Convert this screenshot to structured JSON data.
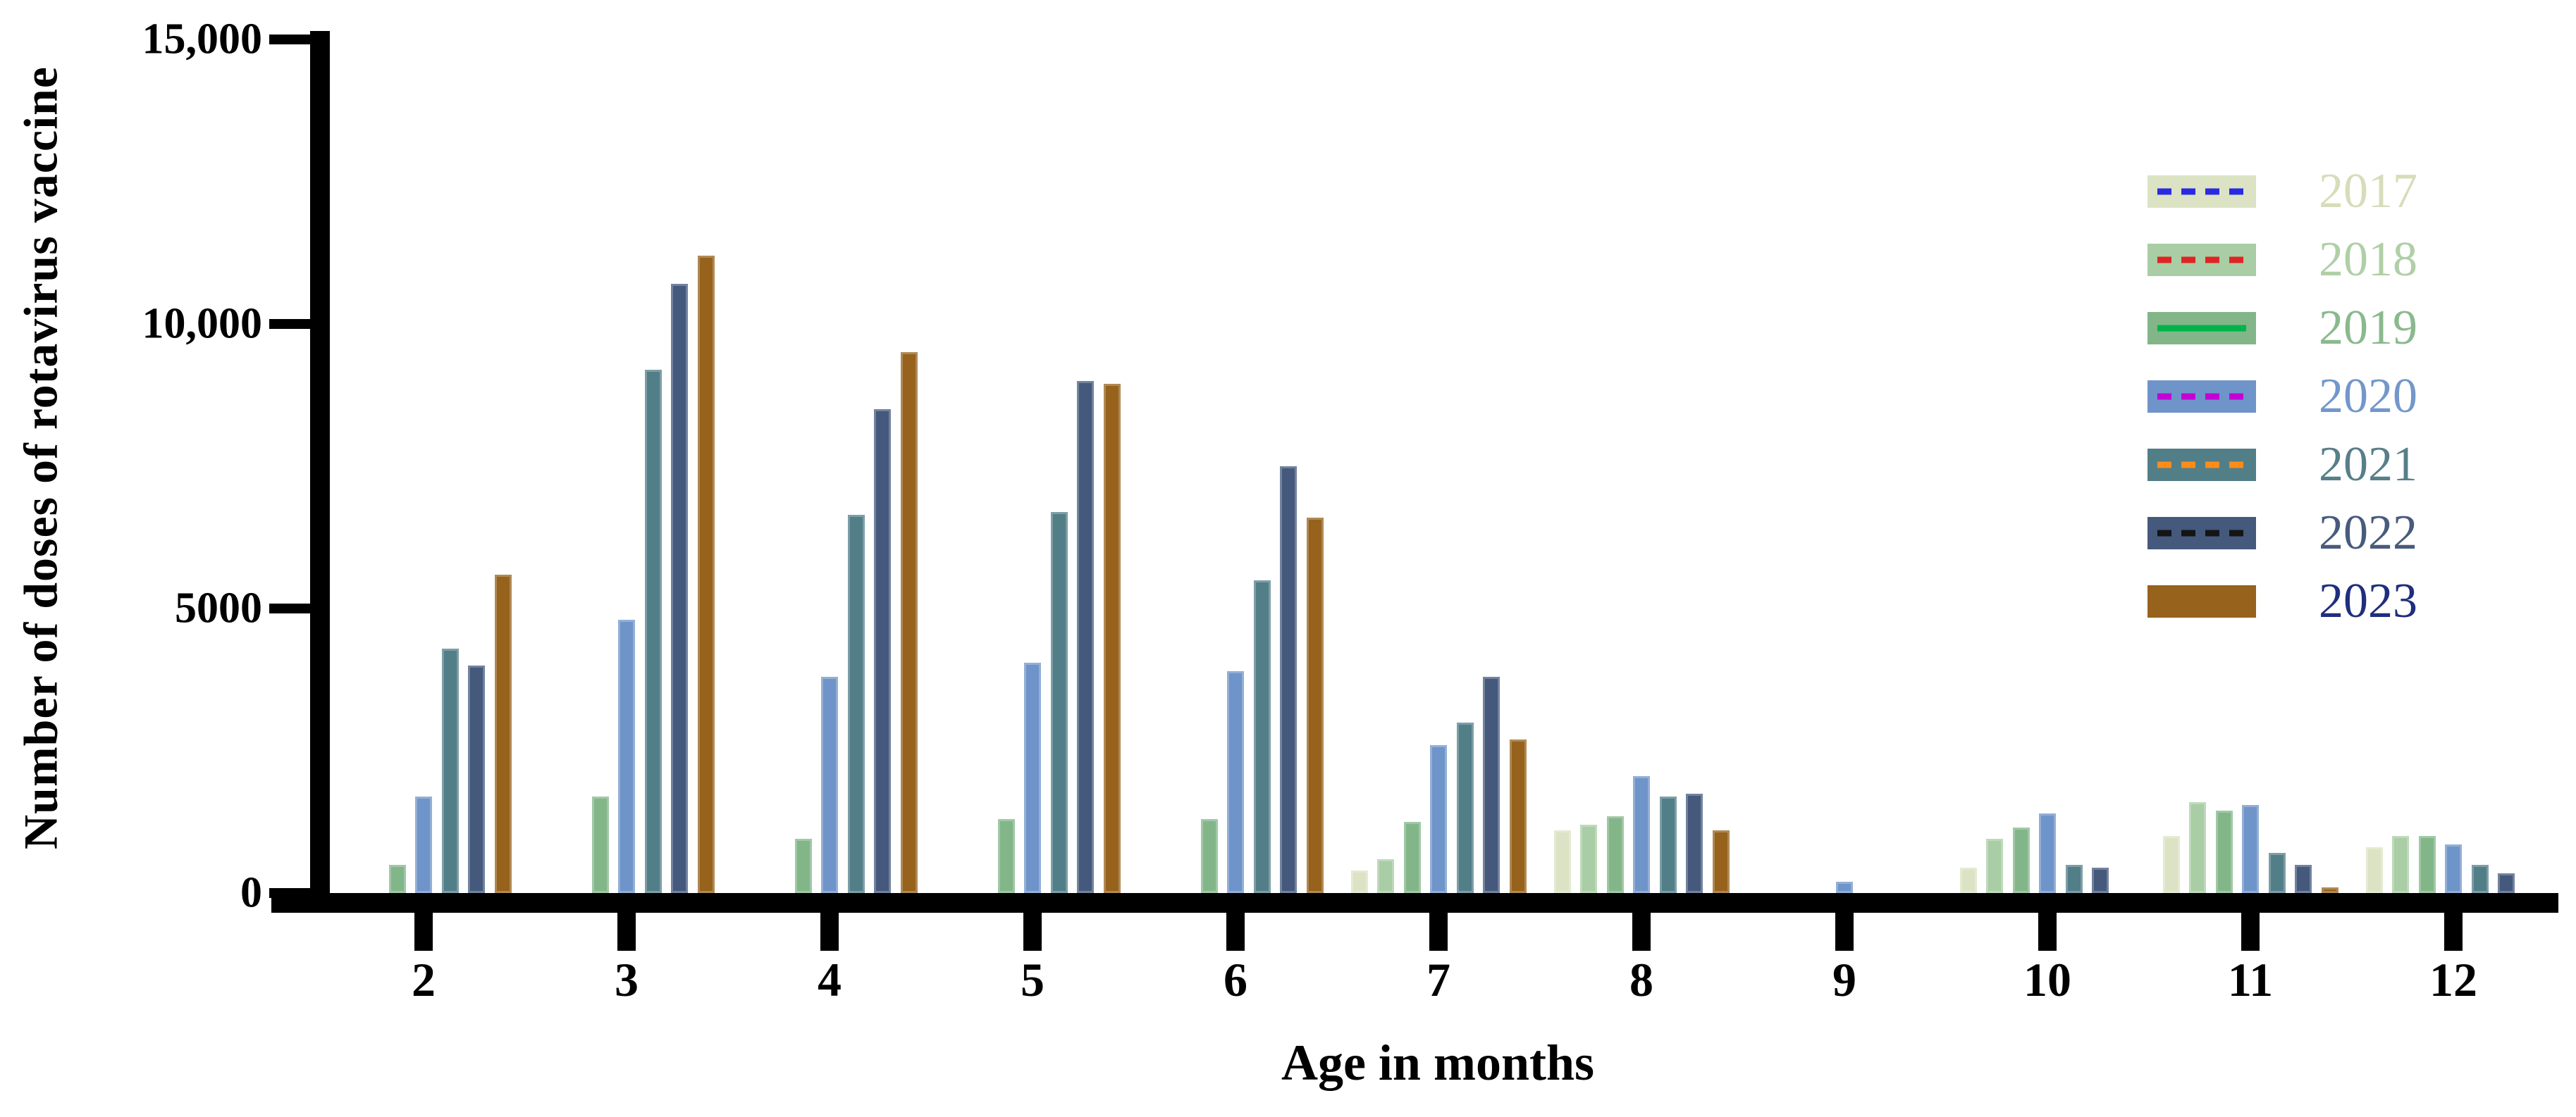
{
  "chart_data": {
    "type": "bar",
    "title": "",
    "xlabel": "Age in months",
    "ylabel": "Number of doses of rotavirus vaccine",
    "categories": [
      "2",
      "3",
      "4",
      "5",
      "6",
      "7",
      "8",
      "9",
      "10",
      "11",
      "12"
    ],
    "ylim": [
      0,
      15000
    ],
    "yticks": [
      {
        "value": 0,
        "label": "0"
      },
      {
        "value": 5000,
        "label": "5000"
      },
      {
        "value": 10000,
        "label": "10,000"
      },
      {
        "value": 15000,
        "label": "15,000"
      }
    ],
    "grid": false,
    "legend_position": "top-right",
    "series": [
      {
        "name": "2017",
        "color": "#dbe3c4",
        "label_color": "#d6ddb9",
        "line_color": "#2a2ae0",
        "line_style": "dashed",
        "values": [
          0,
          0,
          0,
          0,
          0,
          400,
          1100,
          0,
          450,
          1000,
          800
        ]
      },
      {
        "name": "2018",
        "color": "#a9cda4",
        "label_color": "#b0cfa6",
        "line_color": "#e02424",
        "line_style": "dashed",
        "values": [
          0,
          0,
          0,
          0,
          0,
          600,
          1200,
          0,
          950,
          1600,
          1000
        ]
      },
      {
        "name": "2019",
        "color": "#82b689",
        "label_color": "#8ab98d",
        "line_color": "#00b44a",
        "line_style": "solid",
        "values": [
          500,
          1700,
          950,
          1300,
          1300,
          1250,
          1350,
          0,
          1150,
          1450,
          1000
        ]
      },
      {
        "name": "2020",
        "color": "#6f94c9",
        "label_color": "#7397cb",
        "line_color": "#c400d6",
        "line_style": "dashed",
        "values": [
          1700,
          4800,
          3800,
          4050,
          3900,
          2600,
          2050,
          200,
          1400,
          1550,
          850
        ]
      },
      {
        "name": "2021",
        "color": "#527e88",
        "label_color": "#587f89",
        "line_color": "#ff8c1a",
        "line_style": "dashed",
        "values": [
          4300,
          9200,
          6650,
          6700,
          5500,
          3000,
          1700,
          0,
          500,
          700,
          500
        ]
      },
      {
        "name": "2022",
        "color": "#44597c",
        "label_color": "#475b7d",
        "line_color": "#141414",
        "line_style": "dashed",
        "values": [
          4000,
          10700,
          8500,
          9000,
          7500,
          3800,
          1750,
          0,
          450,
          500,
          350
        ]
      },
      {
        "name": "2023",
        "color": "#96621c",
        "label_color": "#1f2e7d",
        "line_color": null,
        "line_style": "none",
        "values": [
          5600,
          11200,
          9500,
          8950,
          6600,
          2700,
          1100,
          0,
          0,
          100,
          0
        ]
      }
    ]
  }
}
